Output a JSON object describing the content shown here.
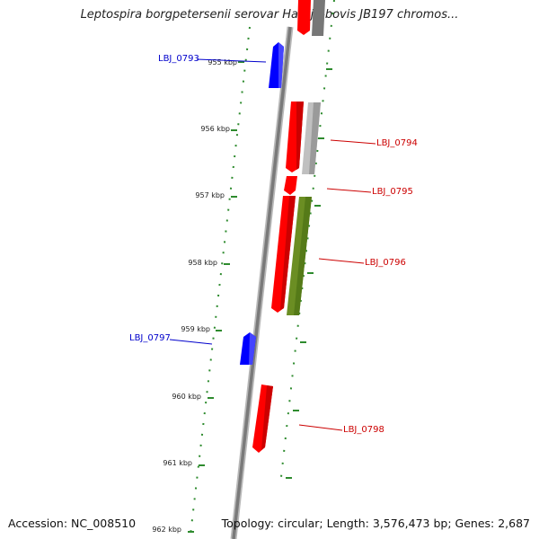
{
  "title": "Leptospira borgpetersenii serovar Hardjo-bovis JB197 chromos...",
  "accession": "Accession: NC_008510",
  "topology": "Topology: circular; Length: 3,576,473 bp; Genes: 2,687",
  "colors": {
    "forward_gene": "#0000ff",
    "reverse_gene": "#ff0000",
    "grey_gene": "#aaaaaa",
    "green_gene": "#6b8e23",
    "scale_ticks": "#2e8b2e",
    "backbone": "#888888"
  },
  "scale_labels": [
    "955 kbp",
    "956 kbp",
    "957 kbp",
    "958 kbp",
    "959 kbp",
    "960 kbp",
    "961 kbp",
    "962 kbp"
  ],
  "gene_labels": [
    {
      "name": "LBJ_0793",
      "color": "#0000cc"
    },
    {
      "name": "LBJ_0794",
      "color": "#cc0000"
    },
    {
      "name": "LBJ_0795",
      "color": "#cc0000"
    },
    {
      "name": "LBJ_0796",
      "color": "#cc0000"
    },
    {
      "name": "LBJ_0797",
      "color": "#0000cc"
    },
    {
      "name": "LBJ_0798",
      "color": "#cc0000"
    }
  ]
}
